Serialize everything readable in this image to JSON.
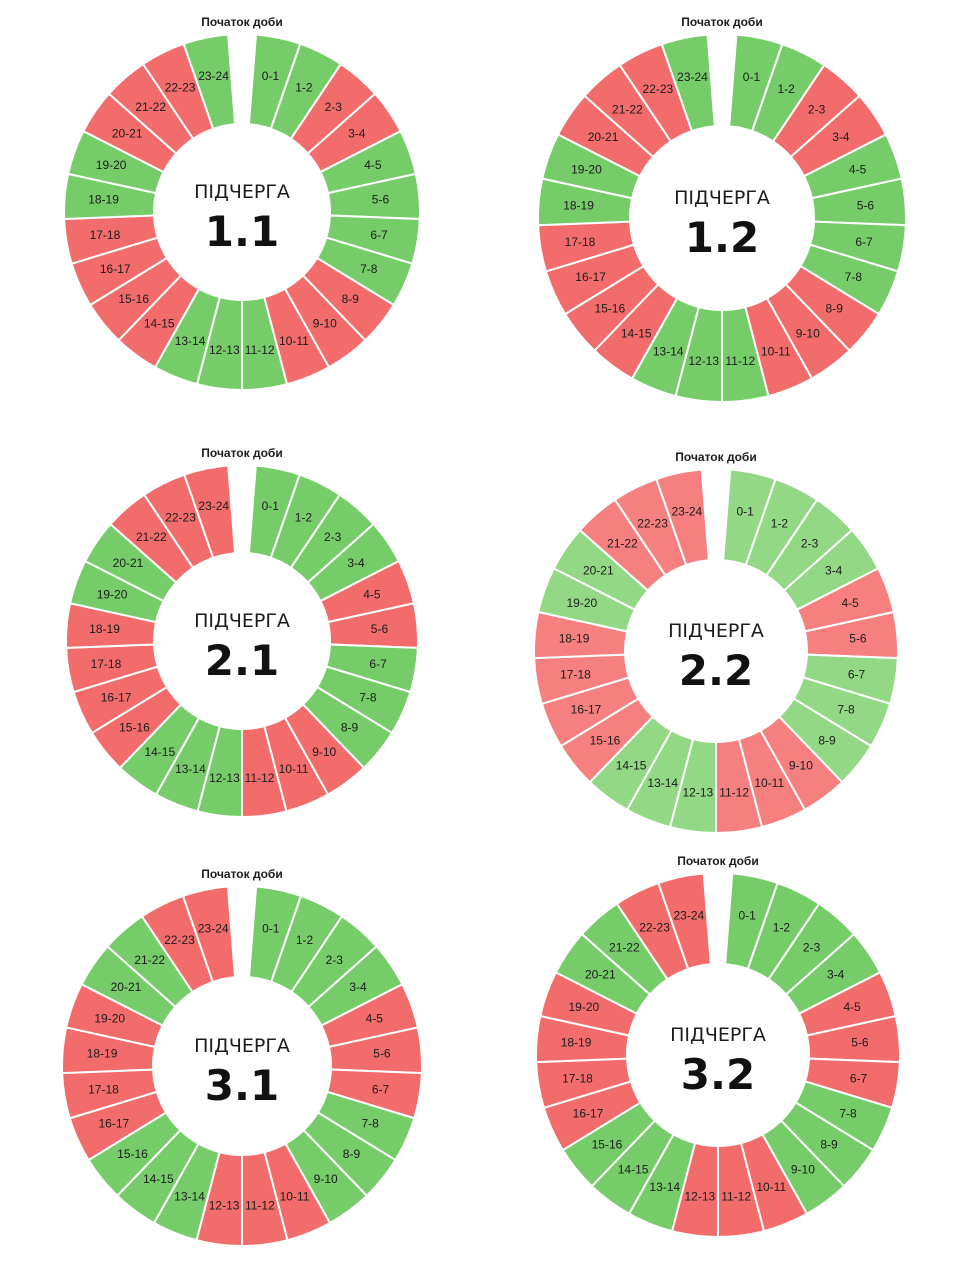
{
  "colors": {
    "on": "#77cc6a",
    "off": "#f36c6c",
    "on_light": "#93d885",
    "off_light": "#f5807f"
  },
  "start_label": "Початок доби",
  "center_caption": "ПІДЧЕРГА",
  "chart_data": [
    {
      "type": "pie",
      "queue": "1.1",
      "categories": [
        "0-1",
        "1-2",
        "2-3",
        "3-4",
        "4-5",
        "5-6",
        "6-7",
        "7-8",
        "8-9",
        "9-10",
        "10-11",
        "11-12",
        "12-13",
        "13-14",
        "14-15",
        "15-16",
        "16-17",
        "17-18",
        "18-19",
        "19-20",
        "20-21",
        "21-22",
        "22-23",
        "23-24"
      ],
      "status": [
        "on",
        "on",
        "off",
        "off",
        "on",
        "on",
        "on",
        "on",
        "off",
        "off",
        "off",
        "on",
        "on",
        "on",
        "off",
        "off",
        "off",
        "off",
        "on",
        "on",
        "off",
        "off",
        "off",
        "on"
      ]
    },
    {
      "type": "pie",
      "queue": "1.2",
      "categories": [
        "0-1",
        "1-2",
        "2-3",
        "3-4",
        "4-5",
        "5-6",
        "6-7",
        "7-8",
        "8-9",
        "9-10",
        "10-11",
        "11-12",
        "12-13",
        "13-14",
        "14-15",
        "15-16",
        "16-17",
        "17-18",
        "18-19",
        "19-20",
        "20-21",
        "21-22",
        "22-23",
        "23-24"
      ],
      "status": [
        "on",
        "on",
        "off",
        "off",
        "on",
        "on",
        "on",
        "on",
        "off",
        "off",
        "off",
        "on",
        "on",
        "on",
        "off",
        "off",
        "off",
        "off",
        "on",
        "on",
        "off",
        "off",
        "off",
        "on"
      ]
    },
    {
      "type": "pie",
      "queue": "2.1",
      "categories": [
        "0-1",
        "1-2",
        "2-3",
        "3-4",
        "4-5",
        "5-6",
        "6-7",
        "7-8",
        "8-9",
        "9-10",
        "10-11",
        "11-12",
        "12-13",
        "13-14",
        "14-15",
        "15-16",
        "16-17",
        "17-18",
        "18-19",
        "19-20",
        "20-21",
        "21-22",
        "22-23",
        "23-24"
      ],
      "status": [
        "on",
        "on",
        "on",
        "on",
        "off",
        "off",
        "on",
        "on",
        "on",
        "off",
        "off",
        "off",
        "on",
        "on",
        "on",
        "off",
        "off",
        "off",
        "off",
        "on",
        "on",
        "off",
        "off",
        "off"
      ]
    },
    {
      "type": "pie",
      "queue": "2.2",
      "faded": true,
      "categories": [
        "0-1",
        "1-2",
        "2-3",
        "3-4",
        "4-5",
        "5-6",
        "6-7",
        "7-8",
        "8-9",
        "9-10",
        "10-11",
        "11-12",
        "12-13",
        "13-14",
        "14-15",
        "15-16",
        "16-17",
        "17-18",
        "18-19",
        "19-20",
        "20-21",
        "21-22",
        "22-23",
        "23-24"
      ],
      "status": [
        "on",
        "on",
        "on",
        "on",
        "off",
        "off",
        "on",
        "on",
        "on",
        "off",
        "off",
        "off",
        "on",
        "on",
        "on",
        "off",
        "off",
        "off",
        "off",
        "on",
        "on",
        "off",
        "off",
        "off"
      ]
    },
    {
      "type": "pie",
      "queue": "3.1",
      "categories": [
        "0-1",
        "1-2",
        "2-3",
        "3-4",
        "4-5",
        "5-6",
        "6-7",
        "7-8",
        "8-9",
        "9-10",
        "10-11",
        "11-12",
        "12-13",
        "13-14",
        "14-15",
        "15-16",
        "16-17",
        "17-18",
        "18-19",
        "19-20",
        "20-21",
        "21-22",
        "22-23",
        "23-24"
      ],
      "status": [
        "on",
        "on",
        "on",
        "on",
        "off",
        "off",
        "off",
        "on",
        "on",
        "on",
        "off",
        "off",
        "off",
        "on",
        "on",
        "on",
        "off",
        "off",
        "off",
        "off",
        "on",
        "on",
        "off",
        "off"
      ]
    },
    {
      "type": "pie",
      "queue": "3.2",
      "categories": [
        "0-1",
        "1-2",
        "2-3",
        "3-4",
        "4-5",
        "5-6",
        "6-7",
        "7-8",
        "8-9",
        "9-10",
        "10-11",
        "11-12",
        "12-13",
        "13-14",
        "14-15",
        "15-16",
        "16-17",
        "17-18",
        "18-19",
        "19-20",
        "20-21",
        "21-22",
        "22-23",
        "23-24"
      ],
      "status": [
        "on",
        "on",
        "on",
        "on",
        "off",
        "off",
        "off",
        "on",
        "on",
        "on",
        "off",
        "off",
        "off",
        "on",
        "on",
        "on",
        "off",
        "off",
        "off",
        "off",
        "on",
        "on",
        "off",
        "off"
      ]
    }
  ]
}
